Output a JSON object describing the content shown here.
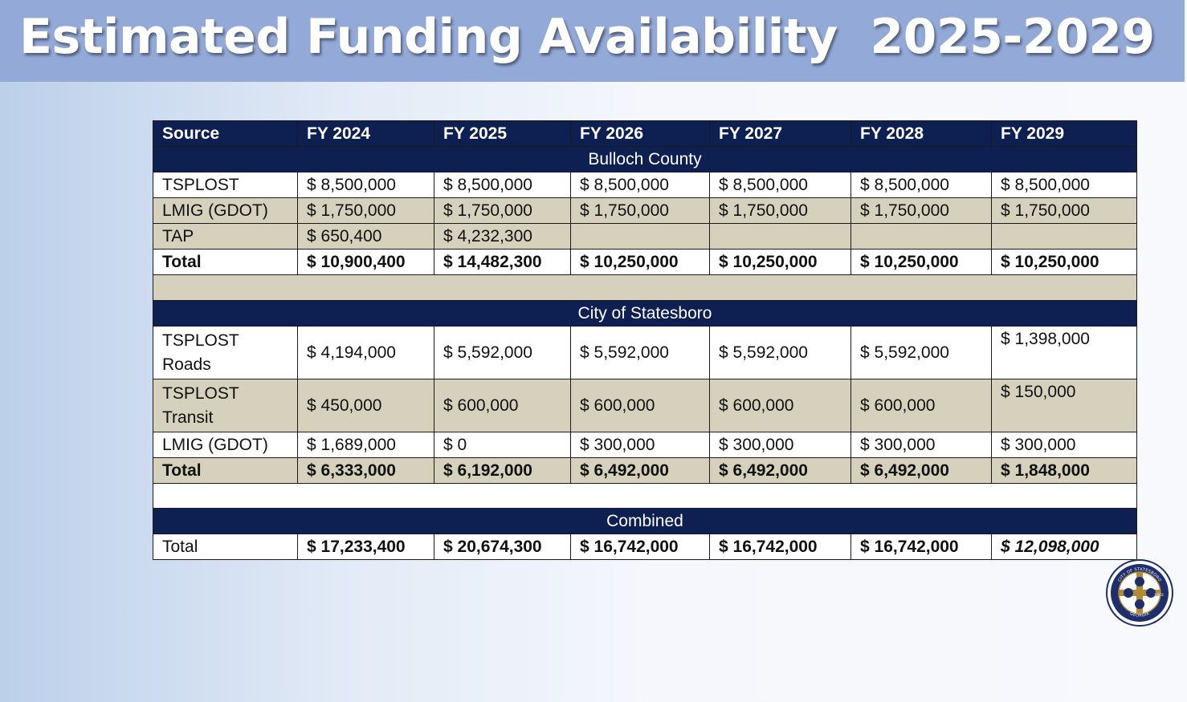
{
  "title": "Estimated Funding Availability  2025-2029",
  "columns": [
    "Source",
    "FY 2024",
    "FY 2025",
    "FY 2026",
    "FY 2027",
    "FY 2028",
    "FY 2029"
  ],
  "bulloch": {
    "heading": "Bulloch County",
    "rows": [
      {
        "label": "TSPLOST",
        "values": [
          "$ 8,500,000",
          "$ 8,500,000",
          "$ 8,500,000",
          "$ 8,500,000",
          "$ 8,500,000",
          "$ 8,500,000"
        ]
      },
      {
        "label": "LMIG (GDOT)",
        "values": [
          "$ 1,750,000",
          "$ 1,750,000",
          "$ 1,750,000",
          "$ 1,750,000",
          "$ 1,750,000",
          "$ 1,750,000"
        ]
      },
      {
        "label": "TAP",
        "values": [
          "$ 650,400",
          "$ 4,232,300",
          "",
          "",
          "",
          ""
        ]
      }
    ],
    "total": {
      "label": "Total",
      "values": [
        "$ 10,900,400",
        "$ 14,482,300",
        "$ 10,250,000",
        "$ 10,250,000",
        "$ 10,250,000",
        "$ 10,250,000"
      ]
    }
  },
  "statesboro": {
    "heading": "City of Statesboro",
    "rows": [
      {
        "label_line1": "TSPLOST",
        "label_line2": "Roads",
        "values": [
          "$ 4,194,000",
          "$ 5,592,000",
          "$ 5,592,000",
          "$ 5,592,000",
          "$ 5,592,000",
          "$ 1,398,000"
        ]
      },
      {
        "label_line1": "TSPLOST",
        "label_line2": "Transit",
        "values": [
          "$ 450,000",
          "$ 600,000",
          "$ 600,000",
          "$ 600,000",
          "$ 600,000",
          "$ 150,000"
        ]
      },
      {
        "label": "LMIG (GDOT)",
        "values": [
          "$ 1,689,000",
          "$ 0",
          "$ 300,000",
          "$ 300,000",
          "$ 300,000",
          "$ 300,000"
        ]
      }
    ],
    "total": {
      "label": "Total",
      "values": [
        "$ 6,333,000",
        "$ 6,192,000",
        "$ 6,492,000",
        "$ 6,492,000",
        "$ 6,492,000",
        "$ 1,848,000"
      ]
    }
  },
  "combined": {
    "heading": "Combined",
    "total": {
      "label": "Total",
      "values": [
        "$ 17,233,400",
        "$ 20,674,300",
        "$ 16,742,000",
        "$ 16,742,000",
        "$ 16,742,000",
        "$ 12,098,000"
      ]
    }
  },
  "seal": {
    "top_text": "CITY OF STATESBORO",
    "year": "1803",
    "bottom_text": "GEORGIA",
    "icon": "city-seal-icon",
    "colors": {
      "ring": "#1f2f6b",
      "cross": "#b58a36"
    }
  }
}
